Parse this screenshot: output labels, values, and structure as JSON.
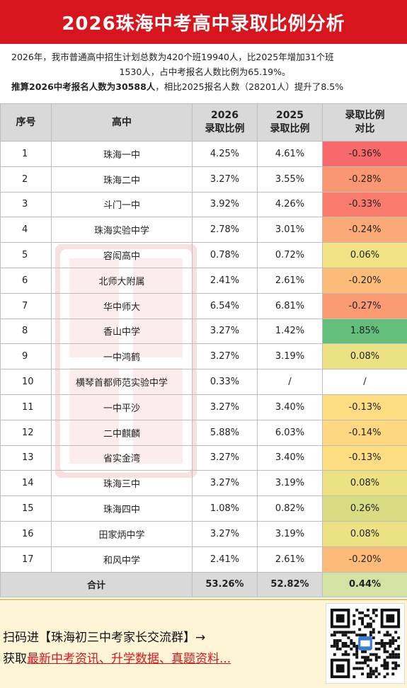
{
  "title": "2026珠海中考高中录取比例分析",
  "intro": {
    "line1": "2026年，我市普通高中招生计划总数为420个班19940人，比2025年增加31个班",
    "line2": "1530人，占中考报名人数比例为65.19%。",
    "line3_bold": "推算2026中考报名人数为30588人",
    "line3_rest": "，相比2025报名人数（28201人）提升了8.5%"
  },
  "table": {
    "headers": {
      "seq": "序号",
      "school": "高中",
      "r2026": [
        "2026",
        "录取比例"
      ],
      "r2025": [
        "2025",
        "录取比例"
      ],
      "diff": [
        "录取比例",
        "对比"
      ]
    },
    "rows": [
      {
        "seq": "1",
        "school": "珠海一中",
        "r2026": "4.25%",
        "r2025": "4.61%",
        "diff": "-0.36%",
        "color": "#f8696b"
      },
      {
        "seq": "2",
        "school": "珠海二中",
        "r2026": "3.27%",
        "r2025": "3.55%",
        "diff": "-0.28%",
        "color": "#fa9773"
      },
      {
        "seq": "3",
        "school": "斗门一中",
        "r2026": "3.92%",
        "r2025": "4.26%",
        "diff": "-0.33%",
        "color": "#f97b6e"
      },
      {
        "seq": "4",
        "school": "珠海实验中学",
        "r2026": "2.78%",
        "r2025": "3.01%",
        "diff": "-0.24%",
        "color": "#fba976"
      },
      {
        "seq": "5",
        "school": "容闳高中",
        "r2026": "0.78%",
        "r2025": "0.72%",
        "diff": "0.06%",
        "color": "#efe384"
      },
      {
        "seq": "6",
        "school": "北师大附属",
        "r2026": "2.41%",
        "r2025": "2.61%",
        "diff": "-0.20%",
        "color": "#fcbb79"
      },
      {
        "seq": "7",
        "school": "华中师大",
        "r2026": "6.54%",
        "r2025": "6.81%",
        "diff": "-0.27%",
        "color": "#fa9b73"
      },
      {
        "seq": "8",
        "school": "香山中学",
        "r2026": "3.27%",
        "r2025": "1.42%",
        "diff": "1.85%",
        "color": "#63be7b"
      },
      {
        "seq": "9",
        "school": "一中鸿鹤",
        "r2026": "3.27%",
        "r2025": "3.19%",
        "diff": "0.08%",
        "color": "#ece283"
      },
      {
        "seq": "10",
        "school": "横琴首都师范实验中学",
        "r2026": "0.33%",
        "r2025": "/",
        "diff": "/",
        "color": "#ffffff"
      },
      {
        "seq": "11",
        "school": "一中平沙",
        "r2026": "3.27%",
        "r2025": "3.40%",
        "diff": "-0.13%",
        "color": "#fedc81"
      },
      {
        "seq": "12",
        "school": "二中麒麟",
        "r2026": "5.88%",
        "r2025": "6.03%",
        "diff": "-0.14%",
        "color": "#fed880"
      },
      {
        "seq": "13",
        "school": "省实金湾",
        "r2026": "3.27%",
        "r2025": "3.40%",
        "diff": "-0.13%",
        "color": "#fedc81"
      },
      {
        "seq": "14",
        "school": "珠海三中",
        "r2026": "3.27%",
        "r2025": "3.19%",
        "diff": "0.08%",
        "color": "#ece283"
      },
      {
        "seq": "15",
        "school": "珠海四中",
        "r2026": "1.08%",
        "r2025": "0.82%",
        "diff": "0.26%",
        "color": "#d8dc82"
      },
      {
        "seq": "16",
        "school": "田家炳中学",
        "r2026": "3.27%",
        "r2025": "3.19%",
        "diff": "0.08%",
        "color": "#ece283"
      },
      {
        "seq": "17",
        "school": "和风中学",
        "r2026": "2.41%",
        "r2025": "2.61%",
        "diff": "-0.20%",
        "color": "#fcbb79"
      }
    ],
    "total": {
      "label": "合计",
      "r2026": "53.26%",
      "r2025": "52.82%",
      "diff": "0.44%",
      "color": "#d4e3a3"
    }
  },
  "footer": {
    "line1": "扫码进【珠海初三中考家长交流群】→",
    "line2_prefix": "获取",
    "line2_link": "最新中考资讯、升学数据、真题资料..."
  },
  "colors": {
    "title_bg": "#d6161c",
    "header_bg": "#d9d9d9",
    "footer_bg": "#fdf5d6"
  },
  "icons": {
    "qr": "qr-code-icon"
  }
}
